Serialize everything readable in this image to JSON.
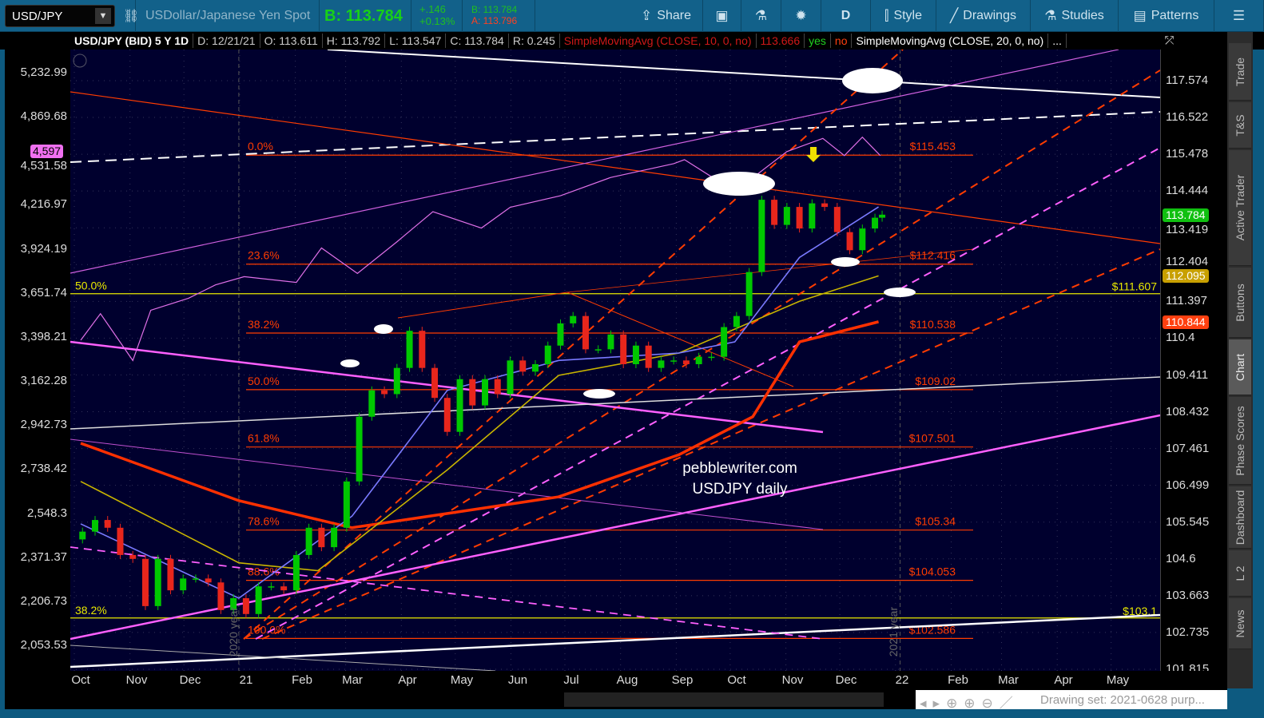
{
  "toolbar": {
    "symbol": "USD/JPY",
    "description": "USDollar/Japanese Yen Spot",
    "bid_big": "B: 113.784",
    "change": "+.146",
    "change_pct": "+0.13%",
    "bid": "B: 113.784",
    "ask": "A: 113.796",
    "buttons": [
      {
        "label": "Share",
        "icon": "share-icon"
      },
      {
        "label": "",
        "icon": "info-card-icon"
      },
      {
        "label": "",
        "icon": "flask-icon"
      },
      {
        "label": "",
        "icon": "gear-icon"
      },
      {
        "label": "D",
        "icon": ""
      },
      {
        "label": "Style",
        "icon": "candlestick-icon"
      },
      {
        "label": "Drawings",
        "icon": "pencil-line-icon"
      },
      {
        "label": "Studies",
        "icon": "flask-icon"
      },
      {
        "label": "Patterns",
        "icon": "patterns-icon"
      },
      {
        "label": "",
        "icon": "menu-list-icon"
      }
    ]
  },
  "infobar": {
    "title": "USD/JPY (BID) 5 Y 1D",
    "date": "D: 12/21/21",
    "open": "O: 113.611",
    "high": "H: 113.792",
    "low": "L: 113.547",
    "close": "C: 113.784",
    "range": "R: 0.245",
    "study1": "SimpleMovingAvg (CLOSE, 10, 0, no)",
    "study1_val": "113.666",
    "yes": "yes",
    "no": "no",
    "study2": "SimpleMovingAvg (CLOSE, 20, 0, no)",
    "more": "..."
  },
  "sidebar": [
    "Trade",
    "T&S",
    "Active Trader",
    "Buttons",
    "Chart",
    "Phase Scores",
    "Dashboard",
    "L 2",
    "News"
  ],
  "bottom": {
    "drawing_set": "Drawing set: 2021-0628 purp..."
  },
  "colors": {
    "up": "#00c800",
    "down": "#e8261c",
    "spx": "#e070e8",
    "fib": "#ff3c00",
    "yellow": "#e8e800",
    "bg": "#00002e"
  },
  "chart_data": {
    "type": "candlestick",
    "right_axis": {
      "scale": "log",
      "ticks": [
        "117.574",
        "116.522",
        "115.478",
        "114.444",
        "113.419",
        "112.404",
        "111.397",
        "110.4",
        "109.411",
        "108.432",
        "107.461",
        "106.499",
        "105.545",
        "104.6",
        "103.663",
        "102.735",
        "101.815"
      ]
    },
    "left_axis": {
      "scale": "log",
      "ticks": [
        "5,232.99",
        "4,869.68",
        "4,531.58",
        "4,216.97",
        "3,924.19",
        "3,651.74",
        "3,398.21",
        "3,162.28",
        "2,942.73",
        "2,738.42",
        "2,548.3",
        "2,371.37",
        "2,206.73",
        "2,053.53"
      ]
    },
    "x_ticks": [
      {
        "label": "Oct",
        "date": "2020-10-01"
      },
      {
        "label": "Nov",
        "date": "2020-11-01"
      },
      {
        "label": "Dec",
        "date": "2020-12-01"
      },
      {
        "label": "21",
        "date": "2021-01-01"
      },
      {
        "label": "Feb",
        "date": "2021-02-01"
      },
      {
        "label": "Mar",
        "date": "2021-03-01"
      },
      {
        "label": "Apr",
        "date": "2021-04-01"
      },
      {
        "label": "May",
        "date": "2021-05-01"
      },
      {
        "label": "Jun",
        "date": "2021-06-01"
      },
      {
        "label": "Jul",
        "date": "2021-07-01"
      },
      {
        "label": "Aug",
        "date": "2021-08-01"
      },
      {
        "label": "Sep",
        "date": "2021-09-01"
      },
      {
        "label": "Oct",
        "date": "2021-10-01"
      },
      {
        "label": "Nov",
        "date": "2021-11-01"
      },
      {
        "label": "Dec",
        "date": "2021-12-01"
      },
      {
        "label": "22",
        "date": "2022-01-01"
      },
      {
        "label": "Feb",
        "date": "2022-02-01"
      },
      {
        "label": "Mar",
        "date": "2022-03-01"
      },
      {
        "label": "Apr",
        "date": "2022-04-01"
      },
      {
        "label": "May",
        "date": "2022-05-01"
      }
    ],
    "year_markers": [
      {
        "label": "2020 year",
        "date": "2020-12-28"
      },
      {
        "label": "2021 year",
        "date": "2021-12-31"
      }
    ],
    "closes": [
      [
        "2020-10-02",
        105.3
      ],
      [
        "2020-10-09",
        105.6
      ],
      [
        "2020-10-16",
        105.4
      ],
      [
        "2020-10-23",
        104.7
      ],
      [
        "2020-10-30",
        104.6
      ],
      [
        "2020-11-06",
        103.4
      ],
      [
        "2020-11-13",
        104.6
      ],
      [
        "2020-11-20",
        103.8
      ],
      [
        "2020-11-27",
        104.1
      ],
      [
        "2020-12-04",
        104.1
      ],
      [
        "2020-12-11",
        104.0
      ],
      [
        "2020-12-18",
        103.3
      ],
      [
        "2020-12-25",
        103.6
      ],
      [
        "2021-01-01",
        103.2
      ],
      [
        "2021-01-08",
        103.9
      ],
      [
        "2021-01-15",
        103.9
      ],
      [
        "2021-01-22",
        103.8
      ],
      [
        "2021-01-29",
        104.7
      ],
      [
        "2021-02-05",
        105.4
      ],
      [
        "2021-02-12",
        104.9
      ],
      [
        "2021-02-19",
        105.4
      ],
      [
        "2021-02-26",
        106.6
      ],
      [
        "2021-03-05",
        108.3
      ],
      [
        "2021-03-12",
        109.0
      ],
      [
        "2021-03-19",
        108.9
      ],
      [
        "2021-03-26",
        109.6
      ],
      [
        "2021-04-02",
        110.6
      ],
      [
        "2021-04-09",
        109.6
      ],
      [
        "2021-04-16",
        108.8
      ],
      [
        "2021-04-23",
        107.9
      ],
      [
        "2021-04-30",
        109.3
      ],
      [
        "2021-05-07",
        108.6
      ],
      [
        "2021-05-14",
        109.3
      ],
      [
        "2021-05-21",
        108.9
      ],
      [
        "2021-05-28",
        109.8
      ],
      [
        "2021-06-04",
        109.5
      ],
      [
        "2021-06-11",
        109.7
      ],
      [
        "2021-06-18",
        110.2
      ],
      [
        "2021-06-25",
        110.8
      ],
      [
        "2021-07-02",
        111.0
      ],
      [
        "2021-07-09",
        110.1
      ],
      [
        "2021-07-16",
        110.1
      ],
      [
        "2021-07-23",
        110.5
      ],
      [
        "2021-07-30",
        109.7
      ],
      [
        "2021-08-06",
        110.2
      ],
      [
        "2021-08-13",
        109.6
      ],
      [
        "2021-08-20",
        109.8
      ],
      [
        "2021-08-27",
        109.8
      ],
      [
        "2021-09-03",
        109.7
      ],
      [
        "2021-09-10",
        109.9
      ],
      [
        "2021-09-17",
        109.9
      ],
      [
        "2021-09-24",
        110.7
      ],
      [
        "2021-10-01",
        111.0
      ],
      [
        "2021-10-08",
        112.2
      ],
      [
        "2021-10-15",
        114.2
      ],
      [
        "2021-10-22",
        113.5
      ],
      [
        "2021-10-29",
        114.0
      ],
      [
        "2021-11-05",
        113.4
      ],
      [
        "2021-11-12",
        114.1
      ],
      [
        "2021-11-19",
        114.0
      ],
      [
        "2021-11-26",
        113.3
      ],
      [
        "2021-12-03",
        112.8
      ],
      [
        "2021-12-10",
        113.4
      ],
      [
        "2021-12-17",
        113.7
      ],
      [
        "2021-12-21",
        113.784
      ]
    ],
    "spx": [
      [
        "2020-10-01",
        3380
      ],
      [
        "2020-10-12",
        3530
      ],
      [
        "2020-10-30",
        3270
      ],
      [
        "2020-11-09",
        3550
      ],
      [
        "2020-11-30",
        3620
      ],
      [
        "2020-12-15",
        3700
      ],
      [
        "2020-12-31",
        3750
      ],
      [
        "2021-01-29",
        3715
      ],
      [
        "2021-02-12",
        3930
      ],
      [
        "2021-03-04",
        3770
      ],
      [
        "2021-03-26",
        3970
      ],
      [
        "2021-04-15",
        4170
      ],
      [
        "2021-05-12",
        4060
      ],
      [
        "2021-05-28",
        4200
      ],
      [
        "2021-06-25",
        4280
      ],
      [
        "2021-07-23",
        4410
      ],
      [
        "2021-08-27",
        4510
      ],
      [
        "2021-09-02",
        4540
      ],
      [
        "2021-09-30",
        4310
      ],
      [
        "2021-10-29",
        4600
      ],
      [
        "2021-11-18",
        4700
      ],
      [
        "2021-11-30",
        4570
      ],
      [
        "2021-12-10",
        4710
      ],
      [
        "2021-12-20",
        4570
      ]
    ],
    "moving_averages": [
      {
        "color": "#ff3000",
        "points": [
          [
            "2020-10-01",
            107.6
          ],
          [
            "2020-12-28",
            106.1
          ],
          [
            "2021-03-01",
            105.4
          ],
          [
            "2021-06-24",
            106.2
          ],
          [
            "2021-08-30",
            107.3
          ],
          [
            "2021-10-10",
            108.3
          ],
          [
            "2021-11-05",
            110.3
          ],
          [
            "2021-12-19",
            110.844
          ]
        ]
      },
      {
        "color": "#c8b400",
        "points": [
          [
            "2020-10-01",
            106.6
          ],
          [
            "2020-12-28",
            104.5
          ],
          [
            "2021-02-10",
            104.3
          ],
          [
            "2021-04-23",
            106.9
          ],
          [
            "2021-06-24",
            109.4
          ],
          [
            "2021-08-30",
            110.0
          ],
          [
            "2021-11-05",
            111.4
          ],
          [
            "2021-12-19",
            112.095
          ]
        ]
      },
      {
        "color": "#7a7aff",
        "points": [
          [
            "2020-10-01",
            105.5
          ],
          [
            "2020-12-28",
            103.6
          ],
          [
            "2021-03-01",
            105.7
          ],
          [
            "2021-04-23",
            109.0
          ],
          [
            "2021-06-24",
            109.8
          ],
          [
            "2021-08-30",
            110.0
          ],
          [
            "2021-09-30",
            110.3
          ],
          [
            "2021-11-05",
            112.6
          ],
          [
            "2021-12-19",
            114.0
          ]
        ]
      }
    ],
    "fib_levels": [
      {
        "pct": "0.0%",
        "price": 115.453,
        "label": "$115.453"
      },
      {
        "pct": "23.6%",
        "price": 112.416,
        "label": "$112.416"
      },
      {
        "pct": "38.2%",
        "price": 110.538,
        "label": "$110.538"
      },
      {
        "pct": "50.0%",
        "price": 109.02,
        "label": "$109.02"
      },
      {
        "pct": "61.8%",
        "price": 107.501,
        "label": "$107.501"
      },
      {
        "pct": "78.6%",
        "price": 105.34,
        "label": "$105.34"
      },
      {
        "pct": "88.6%",
        "price": 104.053,
        "label": "$104.053"
      },
      {
        "pct": "100.0%",
        "price": 102.586,
        "label": "$102.586"
      }
    ],
    "yellow_levels": [
      {
        "pct": "50.0%",
        "price": 111.607,
        "label": "$111.607"
      },
      {
        "pct": "38.2%",
        "price": 103.1,
        "label": "$103.1"
      }
    ],
    "price_badges": [
      {
        "value": "113.784",
        "price": 113.784,
        "color": "#10c010"
      },
      {
        "value": "112.095",
        "price": 112.095,
        "color": "#c8a000"
      },
      {
        "value": "110.844",
        "price": 110.844,
        "color": "#ff4010"
      }
    ],
    "left_badge": {
      "value": "4,597",
      "price": 4597
    },
    "watermark": [
      "pebblewriter.com",
      "USDJPY daily"
    ]
  }
}
